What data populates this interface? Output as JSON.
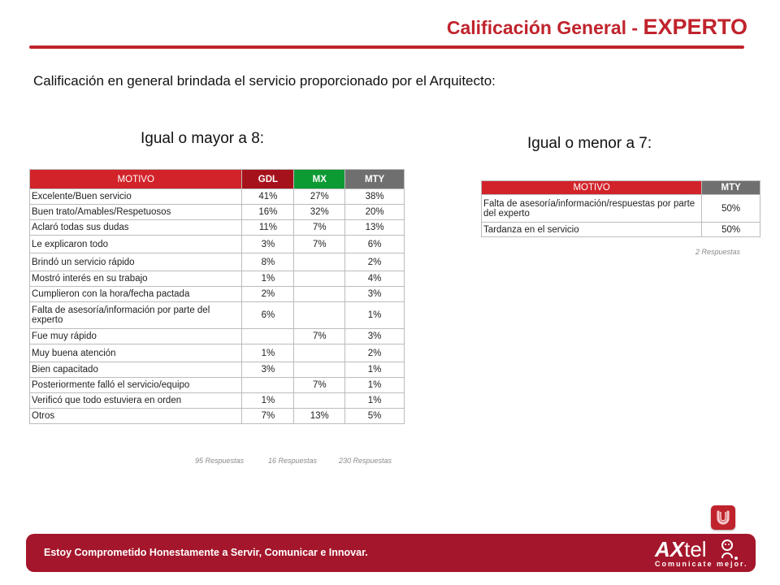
{
  "header": {
    "title_prefix": "Calificación General - ",
    "title_emphasis": "EXPERTO",
    "accent_color": "#c0232c"
  },
  "subtitle": "Calificación en general brindada el servicio proporcionado por el Arquitecto:",
  "left_panel": {
    "heading": "Igual o mayor a 8:",
    "columns": [
      "MOTIVO",
      "GDL",
      "MX",
      "MTY"
    ],
    "rows": [
      {
        "motivo": "Excelente/Buen servicio",
        "gdl": "41%",
        "mx": "27%",
        "mty": "38%"
      },
      {
        "motivo": "Buen trato/Amables/Respetuosos",
        "gdl": "16%",
        "mx": "32%",
        "mty": "20%"
      },
      {
        "motivo": "Aclaró todas sus dudas",
        "gdl": "11%",
        "mx": "7%",
        "mty": "13%"
      },
      {
        "motivo": "Le explicaron todo",
        "gdl": "3%",
        "mx": "7%",
        "mty": "6%"
      },
      {
        "motivo": "Brindó un servicio rápido",
        "gdl": "8%",
        "mx": "",
        "mty": "2%"
      },
      {
        "motivo": "Mostró interés en su trabajo",
        "gdl": "1%",
        "mx": "",
        "mty": "4%"
      },
      {
        "motivo": "Cumplieron con la hora/fecha pactada",
        "gdl": "2%",
        "mx": "",
        "mty": "3%"
      },
      {
        "motivo": "Falta de asesoría/información por parte del experto",
        "gdl": "6%",
        "mx": "",
        "mty": "1%"
      },
      {
        "motivo": "Fue muy rápido",
        "gdl": "",
        "mx": "7%",
        "mty": "3%"
      },
      {
        "motivo": "Muy buena atención",
        "gdl": "1%",
        "mx": "",
        "mty": "2%"
      },
      {
        "motivo": "Bien capacitado",
        "gdl": "3%",
        "mx": "",
        "mty": "1%"
      },
      {
        "motivo": "Posteriormente falló el servicio/equipo",
        "gdl": "",
        "mx": "7%",
        "mty": "1%"
      },
      {
        "motivo": "Verificó que todo estuviera en orden",
        "gdl": "1%",
        "mx": "",
        "mty": "1%"
      },
      {
        "motivo": "Otros",
        "gdl": "7%",
        "mx": "13%",
        "mty": "5%"
      }
    ],
    "responses": [
      "95 Respuestas",
      "16 Respuestas",
      "230  Respuestas"
    ],
    "header_colors": {
      "motivo": "#d2232a",
      "gdl": "#a6121c",
      "mx": "#0c9a33",
      "mty": "#6f6f6f"
    }
  },
  "right_panel": {
    "heading": "Igual o menor a 7:",
    "columns": [
      "MOTIVO",
      "MTY"
    ],
    "rows": [
      {
        "motivo": "Falta de asesoría/información/respuestas por parte del experto",
        "mty": "50%"
      },
      {
        "motivo": "Tardanza en el servicio",
        "mty": "50%"
      }
    ],
    "responses": "2 Respuestas"
  },
  "footer": {
    "slogan": "Estoy Comprometido Honestamente a Servir, Comunicar e Innovar.",
    "logo_ax": "AX",
    "logo_tel": "tel",
    "logo_tagline": "Comunicate mejor.",
    "background": "#a4162b"
  },
  "icons": {
    "badge": "u-badge-icon",
    "logo_mascot": "mascot-icon"
  }
}
